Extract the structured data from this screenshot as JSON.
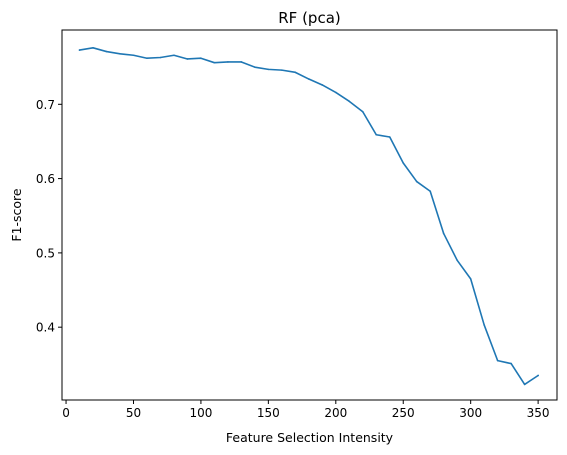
{
  "chart_data": {
    "type": "line",
    "title": "RF (pca)",
    "xlabel": "Feature Selection Intensity",
    "ylabel": "F1-score",
    "xlim": [
      -3,
      364
    ],
    "ylim": [
      0.302,
      0.8
    ],
    "xticks": [
      0,
      50,
      100,
      150,
      200,
      250,
      300,
      350
    ],
    "yticks": [
      0.4,
      0.5,
      0.6,
      0.7
    ],
    "ytick_labels": [
      "0.4",
      "0.5",
      "0.6",
      "0.7"
    ],
    "grid": false,
    "line_color": "#1f77b4",
    "series": [
      {
        "x": [
          10,
          20,
          30,
          40,
          50,
          60,
          70,
          80,
          90,
          100,
          110,
          120,
          130,
          140,
          150,
          160,
          170,
          180,
          190,
          200,
          210,
          220,
          230,
          240,
          250,
          260,
          270,
          280,
          290,
          300,
          310,
          320,
          330,
          340,
          350
        ],
        "y": [
          0.773,
          0.776,
          0.771,
          0.768,
          0.766,
          0.762,
          0.763,
          0.766,
          0.761,
          0.762,
          0.756,
          0.757,
          0.757,
          0.75,
          0.747,
          0.746,
          0.743,
          0.734,
          0.726,
          0.716,
          0.704,
          0.69,
          0.659,
          0.656,
          0.621,
          0.596,
          0.583,
          0.526,
          0.49,
          0.465,
          0.403,
          0.355,
          0.351,
          0.323,
          0.335
        ]
      }
    ]
  }
}
